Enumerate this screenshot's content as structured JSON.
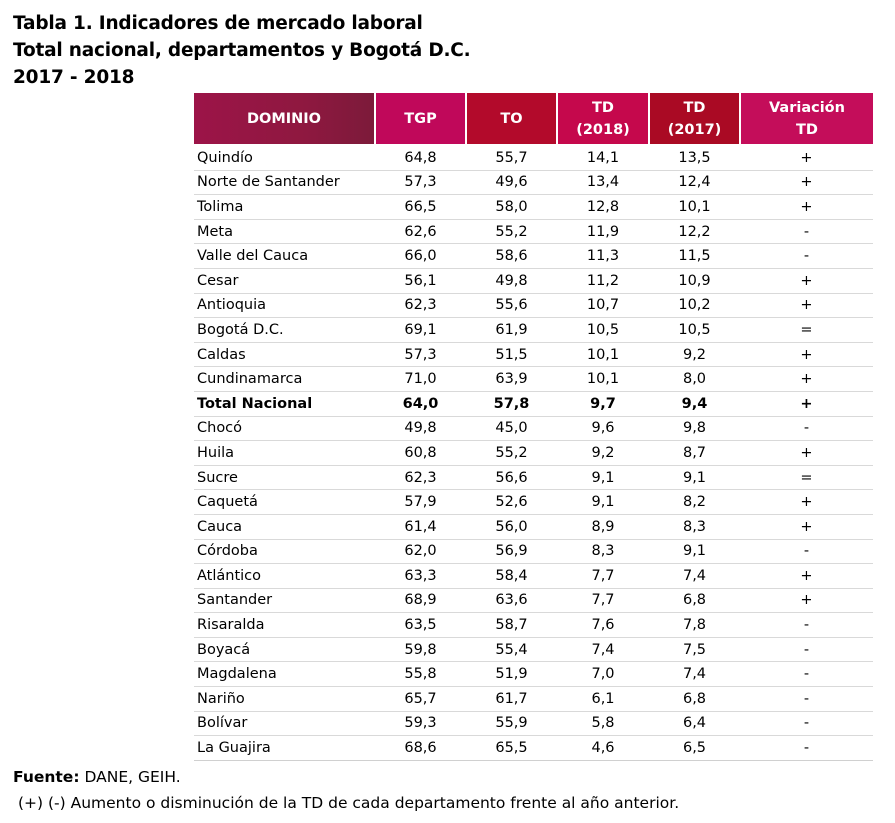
{
  "title": {
    "line1": "Tabla 1. Indicadores de mercado laboral",
    "line2": "Total nacional, departamentos y Bogotá D.C.",
    "line3": "2017 - 2018"
  },
  "table": {
    "headers": {
      "dominio": "DOMINIO",
      "tgp": "TGP",
      "to": "TO",
      "td2018_a": "TD",
      "td2018_b": "(2018)",
      "td2017_a": "TD",
      "td2017_b": "(2017)",
      "variacion_a": "Variación",
      "variacion_b": "TD"
    },
    "header_colors": {
      "dominio": "#8f1840",
      "tgp": "#c0085a",
      "to": "#b30a2b",
      "td2018": "#c5084c",
      "td2017": "#aa0a24",
      "variacion": "#c40d5a"
    },
    "rows": [
      {
        "dominio": "Quindío",
        "tgp": "64,8",
        "to": "55,7",
        "td2018": "14,1",
        "td2017": "13,5",
        "variacion": "+"
      },
      {
        "dominio": "Norte de Santander",
        "tgp": "57,3",
        "to": "49,6",
        "td2018": "13,4",
        "td2017": "12,4",
        "variacion": "+"
      },
      {
        "dominio": "Tolima",
        "tgp": "66,5",
        "to": "58,0",
        "td2018": "12,8",
        "td2017": "10,1",
        "variacion": "+"
      },
      {
        "dominio": "Meta",
        "tgp": "62,6",
        "to": "55,2",
        "td2018": "11,9",
        "td2017": "12,2",
        "variacion": "-"
      },
      {
        "dominio": "Valle del Cauca",
        "tgp": "66,0",
        "to": "58,6",
        "td2018": "11,3",
        "td2017": "11,5",
        "variacion": "-"
      },
      {
        "dominio": "Cesar",
        "tgp": "56,1",
        "to": "49,8",
        "td2018": "11,2",
        "td2017": "10,9",
        "variacion": "+"
      },
      {
        "dominio": "Antioquia",
        "tgp": "62,3",
        "to": "55,6",
        "td2018": "10,7",
        "td2017": "10,2",
        "variacion": "+"
      },
      {
        "dominio": "Bogotá D.C.",
        "tgp": "69,1",
        "to": "61,9",
        "td2018": "10,5",
        "td2017": "10,5",
        "variacion": "="
      },
      {
        "dominio": "Caldas",
        "tgp": "57,3",
        "to": "51,5",
        "td2018": "10,1",
        "td2017": "9,2",
        "variacion": "+"
      },
      {
        "dominio": "Cundinamarca",
        "tgp": "71,0",
        "to": "63,9",
        "td2018": "10,1",
        "td2017": "8,0",
        "variacion": "+"
      },
      {
        "dominio": "Total Nacional",
        "tgp": "64,0",
        "to": "57,8",
        "td2018": "9,7",
        "td2017": "9,4",
        "variacion": "+",
        "bold": true
      },
      {
        "dominio": "Chocó",
        "tgp": "49,8",
        "to": "45,0",
        "td2018": "9,6",
        "td2017": "9,8",
        "variacion": "-"
      },
      {
        "dominio": "Huila",
        "tgp": "60,8",
        "to": "55,2",
        "td2018": "9,2",
        "td2017": "8,7",
        "variacion": "+"
      },
      {
        "dominio": "Sucre",
        "tgp": "62,3",
        "to": "56,6",
        "td2018": "9,1",
        "td2017": "9,1",
        "variacion": "="
      },
      {
        "dominio": "Caquetá",
        "tgp": "57,9",
        "to": "52,6",
        "td2018": "9,1",
        "td2017": "8,2",
        "variacion": "+"
      },
      {
        "dominio": "Cauca",
        "tgp": "61,4",
        "to": "56,0",
        "td2018": "8,9",
        "td2017": "8,3",
        "variacion": "+"
      },
      {
        "dominio": "Córdoba",
        "tgp": "62,0",
        "to": "56,9",
        "td2018": "8,3",
        "td2017": "9,1",
        "variacion": "-"
      },
      {
        "dominio": "Atlántico",
        "tgp": "63,3",
        "to": "58,4",
        "td2018": "7,7",
        "td2017": "7,4",
        "variacion": "+"
      },
      {
        "dominio": "Santander",
        "tgp": "68,9",
        "to": "63,6",
        "td2018": "7,7",
        "td2017": "6,8",
        "variacion": "+"
      },
      {
        "dominio": "Risaralda",
        "tgp": "63,5",
        "to": "58,7",
        "td2018": "7,6",
        "td2017": "7,8",
        "variacion": "-"
      },
      {
        "dominio": "Boyacá",
        "tgp": "59,8",
        "to": "55,4",
        "td2018": "7,4",
        "td2017": "7,5",
        "variacion": "-"
      },
      {
        "dominio": "Magdalena",
        "tgp": "55,8",
        "to": "51,9",
        "td2018": "7,0",
        "td2017": "7,4",
        "variacion": "-"
      },
      {
        "dominio": "Nariño",
        "tgp": "65,7",
        "to": "61,7",
        "td2018": "6,1",
        "td2017": "6,8",
        "variacion": "-"
      },
      {
        "dominio": "Bolívar",
        "tgp": "59,3",
        "to": "55,9",
        "td2018": "5,8",
        "td2017": "6,4",
        "variacion": "-"
      },
      {
        "dominio": "La Guajira",
        "tgp": "68,6",
        "to": "65,5",
        "td2018": "4,6",
        "td2017": "6,5",
        "variacion": "-"
      }
    ]
  },
  "footer": {
    "source_label": "Fuente:",
    "source_value": " DANE, GEIH.",
    "note": "(+) (-) Aumento o disminución de la TD de cada departamento frente al año anterior."
  }
}
